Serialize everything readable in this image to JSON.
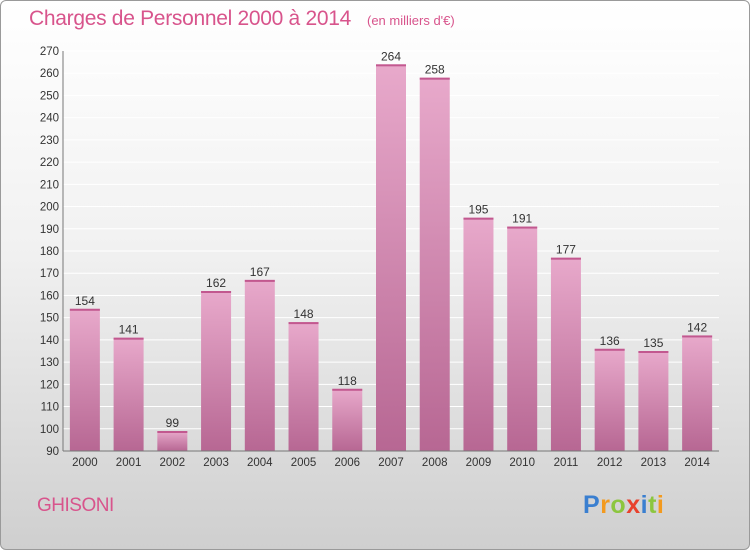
{
  "page": {
    "title": "Charges de Personnel 2000 à 2014",
    "subtitle": "(en milliers d'€)",
    "location": "GHISONI",
    "brand_letters": [
      {
        "ch": "P",
        "color": "#3a7fd0"
      },
      {
        "ch": "r",
        "color": "#f39a1e"
      },
      {
        "ch": "o",
        "color": "#8cc63f"
      },
      {
        "ch": "x",
        "color": "#e8412d"
      },
      {
        "ch": "i",
        "color": "#3a7fd0"
      },
      {
        "ch": "t",
        "color": "#8cc63f"
      },
      {
        "ch": "i",
        "color": "#f39a1e"
      }
    ]
  },
  "chart_data": {
    "type": "bar",
    "title": "Charges de Personnel 2000 à 2014",
    "subtitle": "(en milliers d'€)",
    "categories": [
      "2000",
      "2001",
      "2002",
      "2003",
      "2004",
      "2005",
      "2006",
      "2007",
      "2008",
      "2009",
      "2010",
      "2011",
      "2012",
      "2013",
      "2014"
    ],
    "values": [
      154,
      141,
      99,
      162,
      167,
      148,
      118,
      264,
      258,
      195,
      191,
      177,
      136,
      135,
      142
    ],
    "ylim": [
      90,
      270
    ],
    "ytick_step": 10,
    "grid": true,
    "bar_color": "#d47aa8",
    "xlabel": "",
    "ylabel": ""
  }
}
